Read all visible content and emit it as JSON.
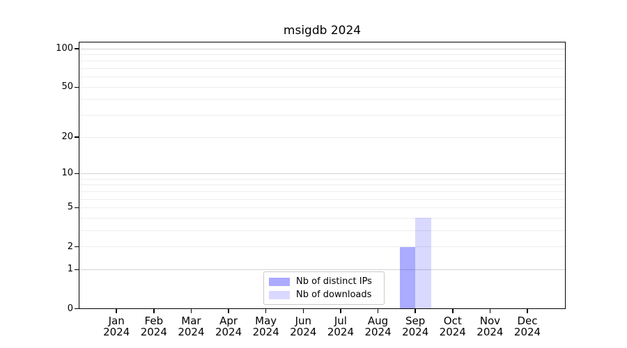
{
  "chart_data": {
    "type": "bar",
    "title": "msigdb 2024",
    "categories": [
      {
        "label": "Jan",
        "sub": "2024"
      },
      {
        "label": "Feb",
        "sub": "2024"
      },
      {
        "label": "Mar",
        "sub": "2024"
      },
      {
        "label": "Apr",
        "sub": "2024"
      },
      {
        "label": "May",
        "sub": "2024"
      },
      {
        "label": "Jun",
        "sub": "2024"
      },
      {
        "label": "Jul",
        "sub": "2024"
      },
      {
        "label": "Aug",
        "sub": "2024"
      },
      {
        "label": "Sep",
        "sub": "2024"
      },
      {
        "label": "Oct",
        "sub": "2024"
      },
      {
        "label": "Nov",
        "sub": "2024"
      },
      {
        "label": "Dec",
        "sub": "2024"
      }
    ],
    "series": [
      {
        "name": "Nb of distinct IPs",
        "color": "#0000ff54",
        "values": [
          0,
          0,
          0,
          0,
          0,
          0,
          0,
          0,
          2,
          0,
          0,
          0
        ]
      },
      {
        "name": "Nb of downloads",
        "color": "#0000ff26",
        "values": [
          0,
          0,
          0,
          0,
          0,
          0,
          0,
          0,
          4,
          0,
          0,
          0
        ]
      }
    ],
    "y_axis": {
      "scale": "log1p",
      "max": 113.3,
      "ticks": [
        0,
        1,
        2,
        5,
        10,
        20,
        50,
        100
      ],
      "major_gridlines": [
        1,
        10,
        100
      ],
      "minor_gridlines": [
        2,
        3,
        4,
        5,
        6,
        7,
        8,
        9,
        20,
        30,
        40,
        50,
        60,
        70,
        80,
        90
      ]
    },
    "legend": {
      "position": "bottom-center"
    },
    "grid": true
  },
  "colors": {
    "axis": "#000000",
    "major_grid": "#d2d2d2",
    "minor_grid": "#ededed",
    "legend_border": "#c9c9c9",
    "text": "#000000"
  }
}
